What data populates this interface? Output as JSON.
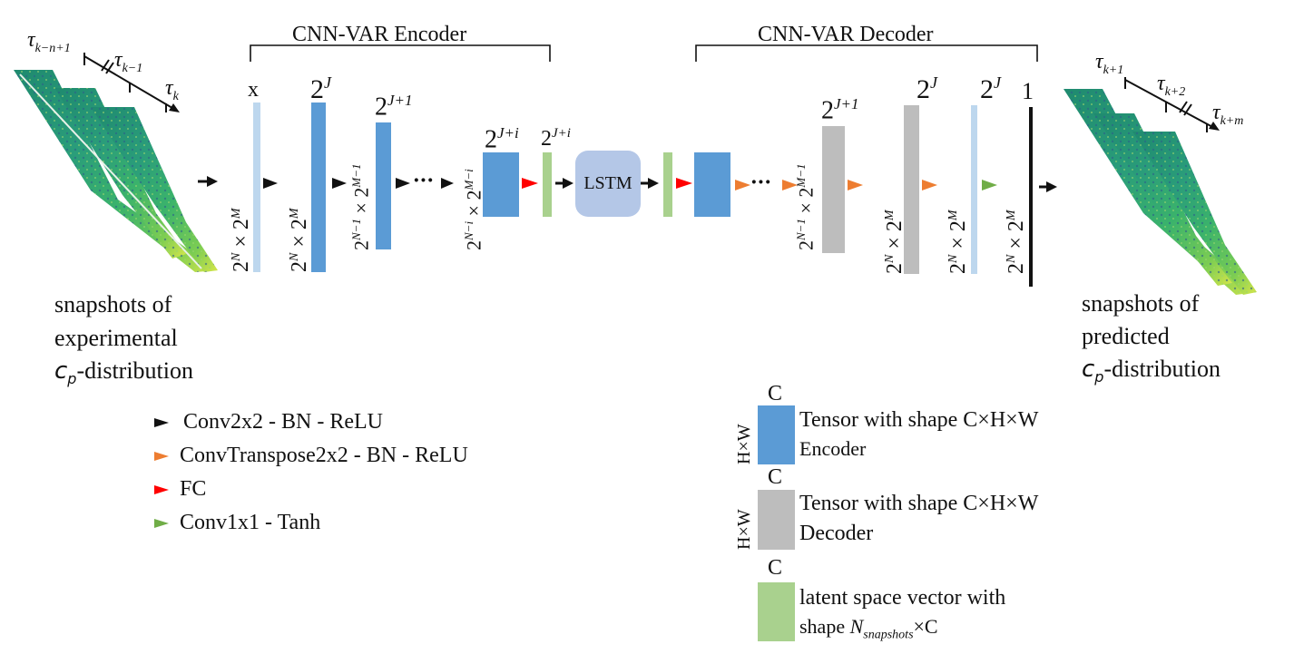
{
  "encoder": {
    "title": "CNN-VAR Encoder",
    "x_label": "x",
    "ch1": "2",
    "ch1_sup": "J",
    "ch2": "2",
    "ch2_sup": "J+1",
    "ch3": "2",
    "ch3_sup": "J+i",
    "ch4": "2",
    "ch4_sup": "J+i",
    "dim1": "2^N × 2^M",
    "dim2": "2^N × 2^M",
    "dim3": "2^(N−1) × 2^(M−1)",
    "dim4": "2^(N−i) × 2^(M−i)",
    "dots": "···"
  },
  "lstm": {
    "label": "LSTM"
  },
  "decoder": {
    "title": "CNN-VAR Decoder",
    "ch1": "2",
    "ch1_sup": "J+1",
    "ch2": "2",
    "ch2_sup": "J",
    "ch3": "2",
    "ch3_sup": "J",
    "ch4": "1",
    "dim1": "2^(N−1) × 2^(M−1)",
    "dim2": "2^N × 2^M",
    "dim3": "2^N × 2^M",
    "dim4": "2^N × 2^M",
    "dots": "···"
  },
  "input": {
    "tau_a": "τ",
    "tau_a_sub": "k−n+1",
    "tau_b": "τ",
    "tau_b_sub": "k−1",
    "tau_c": "τ",
    "tau_c_sub": "k",
    "caption_line1": "snapshots of",
    "caption_line2": "experimental",
    "caption_line3_sym": "c",
    "caption_line3_sub": "p",
    "caption_line3_rest": "-distribution"
  },
  "output": {
    "tau_a": "τ",
    "tau_a_sub": "k+1",
    "tau_b": "τ",
    "tau_b_sub": "k+2",
    "tau_c": "τ",
    "tau_c_sub": "k+m",
    "caption_line1": "snapshots of",
    "caption_line2": "predicted",
    "caption_line3_sym": "c",
    "caption_line3_sub": "p",
    "caption_line3_rest": "-distribution"
  },
  "legend_ops": [
    {
      "label": "Conv2x2 - BN - ReLU",
      "color": "#111111"
    },
    {
      "label": "ConvTranspose2x2 - BN - ReLU",
      "color": "#ed7d31"
    },
    {
      "label": "FC",
      "color": "#ff0000"
    },
    {
      "label": "Conv1x1 - Tanh",
      "color": "#70ad47"
    }
  ],
  "legend_tensors": {
    "c_label": "C",
    "hw_label": "H×W",
    "encoder_line1": "Tensor with shape C×H×W",
    "encoder_line2": "Encoder",
    "decoder_line1": "Tensor with shape C×H×W",
    "decoder_line2": "Decoder",
    "latent_line1": "latent space vector with",
    "latent_line2_pre": "shape ",
    "latent_line2_sym": "N",
    "latent_line2_sub": "snapshots",
    "latent_line2_post": "×C"
  },
  "colors": {
    "encoder_blue": "#5b9bd5",
    "decoder_gray": "#bdbdbd",
    "latent_green": "#a9d18e",
    "input_pale": "#bdd7ee",
    "lstm_fill": "#b4c7e7"
  }
}
